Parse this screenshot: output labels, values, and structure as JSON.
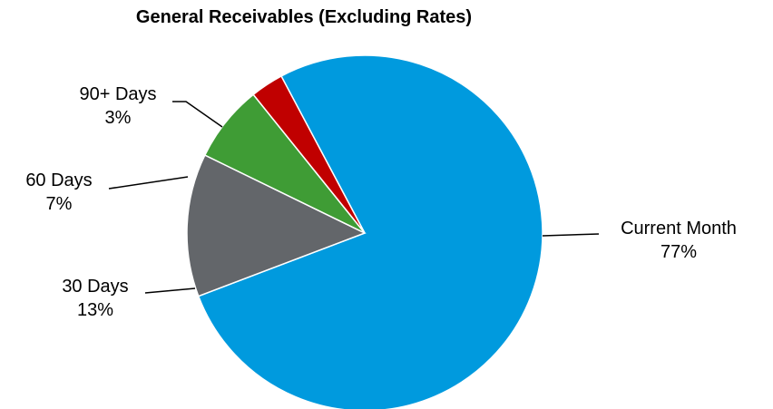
{
  "chart_data": {
    "type": "pie",
    "title": "General Receivables (Excluding Rates)",
    "slices": [
      {
        "name": "Current Month",
        "value": 77,
        "label": "77%",
        "color": "#009ADE"
      },
      {
        "name": "30 Days",
        "value": 13,
        "label": "13%",
        "color": "#63666A"
      },
      {
        "name": "60 Days",
        "value": 7,
        "label": "7%",
        "color": "#3F9C35"
      },
      {
        "name": "90+ Days",
        "value": 3,
        "label": "3%",
        "color": "#C00000"
      }
    ],
    "legend": "none",
    "data_labels": "outside-with-leader-lines"
  }
}
